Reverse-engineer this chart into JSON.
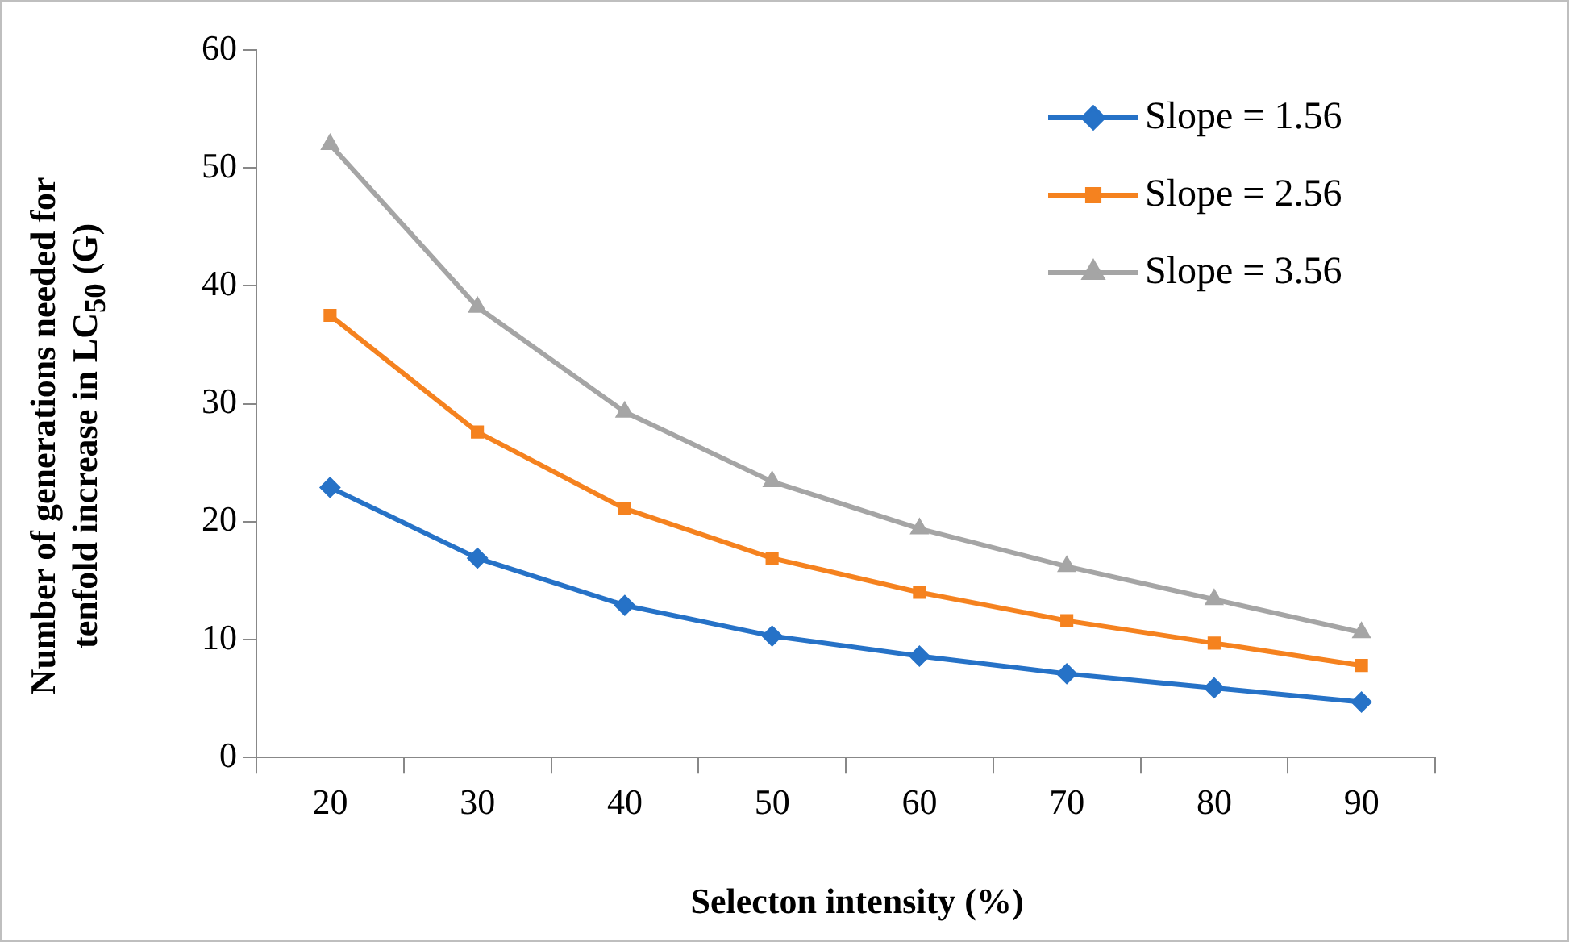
{
  "chart_data": {
    "type": "line",
    "xlabel": "Selecton intensity (%)",
    "ylabel": "Number of generations needed for tenfold increase in LC$_{50}$ (G)",
    "categories": [
      "20",
      "30",
      "40",
      "50",
      "60",
      "70",
      "80",
      "90"
    ],
    "series": [
      {
        "name": "Slope = 1.56",
        "color": "#2672c7",
        "marker": "diamond",
        "values": [
          22.9,
          16.9,
          12.9,
          10.3,
          8.6,
          7.1,
          5.9,
          4.7
        ]
      },
      {
        "name": "Slope = 2.56",
        "color": "#f5821f",
        "marker": "square",
        "values": [
          37.5,
          27.6,
          21.1,
          16.9,
          14.0,
          11.6,
          9.7,
          7.8
        ]
      },
      {
        "name": "Slope = 3.56",
        "color": "#a5a5a5",
        "marker": "triangle",
        "values": [
          52.0,
          38.2,
          29.3,
          23.4,
          19.4,
          16.2,
          13.4,
          10.6
        ]
      }
    ],
    "ylim": [
      0,
      60
    ],
    "yticks": [
      0,
      10,
      20,
      30,
      40,
      50,
      60
    ],
    "grid": false,
    "legend": "top right",
    "line_style": "solid"
  }
}
